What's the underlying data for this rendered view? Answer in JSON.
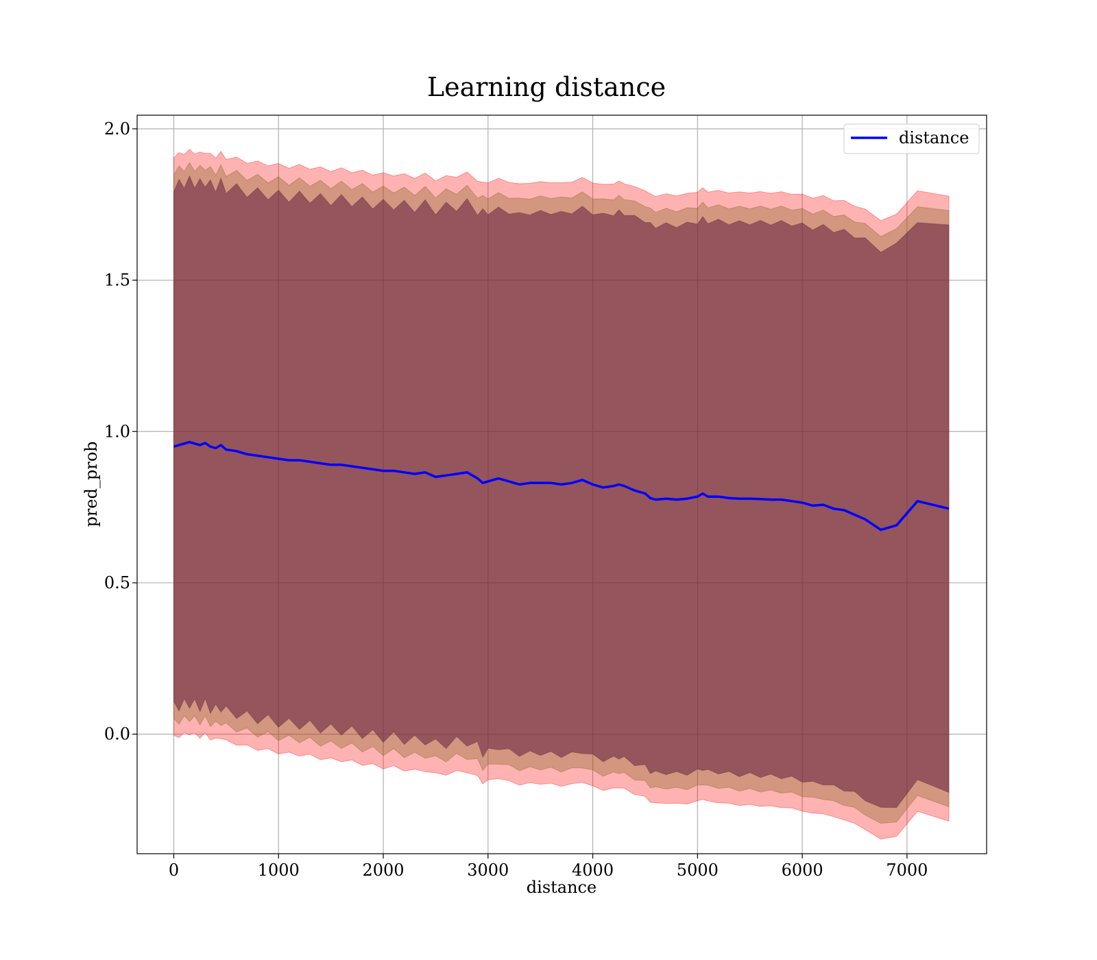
{
  "chart_data": {
    "type": "line",
    "title": "Learning distance",
    "xlabel": "distance",
    "ylabel": "pred_prob",
    "xlim": [
      -350,
      7760
    ],
    "ylim": [
      -0.395,
      2.045
    ],
    "xticks": [
      0,
      1000,
      2000,
      3000,
      4000,
      5000,
      6000,
      7000
    ],
    "xtick_labels": [
      "0",
      "1000",
      "2000",
      "3000",
      "4000",
      "5000",
      "6000",
      "7000"
    ],
    "yticks": [
      0.0,
      0.5,
      1.0,
      1.5,
      2.0
    ],
    "ytick_labels": [
      "0.0",
      "0.5",
      "1.0",
      "1.5",
      "2.0"
    ],
    "grid": true,
    "legend": {
      "position": "top-right",
      "entries": [
        "distance"
      ]
    },
    "colors": {
      "line": "#0000ff",
      "band_outer": "#ff0000",
      "band_middle": "#806020",
      "band_inner": "#602040"
    },
    "series": [
      {
        "name": "distance",
        "x": [
          0,
          50,
          100,
          150,
          200,
          250,
          300,
          350,
          400,
          450,
          500,
          600,
          700,
          800,
          900,
          1000,
          1100,
          1200,
          1300,
          1400,
          1500,
          1600,
          1700,
          1800,
          1900,
          2000,
          2100,
          2200,
          2300,
          2400,
          2500,
          2600,
          2700,
          2800,
          2900,
          2950,
          3000,
          3100,
          3200,
          3300,
          3400,
          3500,
          3600,
          3700,
          3800,
          3900,
          4000,
          4100,
          4200,
          4250,
          4300,
          4400,
          4500,
          4550,
          4600,
          4700,
          4800,
          4900,
          5000,
          5050,
          5100,
          5200,
          5300,
          5400,
          5500,
          5600,
          5700,
          5800,
          5900,
          6000,
          6100,
          6200,
          6300,
          6400,
          6500,
          6600,
          6750,
          6900,
          7100,
          7400
        ],
        "y": [
          0.95,
          0.955,
          0.96,
          0.965,
          0.96,
          0.955,
          0.962,
          0.95,
          0.945,
          0.955,
          0.94,
          0.935,
          0.925,
          0.92,
          0.915,
          0.91,
          0.905,
          0.905,
          0.9,
          0.895,
          0.89,
          0.89,
          0.885,
          0.88,
          0.875,
          0.87,
          0.87,
          0.865,
          0.86,
          0.865,
          0.85,
          0.855,
          0.86,
          0.865,
          0.845,
          0.83,
          0.835,
          0.845,
          0.835,
          0.825,
          0.83,
          0.83,
          0.83,
          0.825,
          0.83,
          0.84,
          0.825,
          0.815,
          0.82,
          0.825,
          0.82,
          0.805,
          0.795,
          0.78,
          0.775,
          0.778,
          0.775,
          0.778,
          0.785,
          0.795,
          0.785,
          0.785,
          0.78,
          0.778,
          0.778,
          0.777,
          0.775,
          0.775,
          0.77,
          0.765,
          0.755,
          0.758,
          0.745,
          0.74,
          0.725,
          0.71,
          0.675,
          0.69,
          0.77,
          0.745
        ]
      }
    ]
  }
}
